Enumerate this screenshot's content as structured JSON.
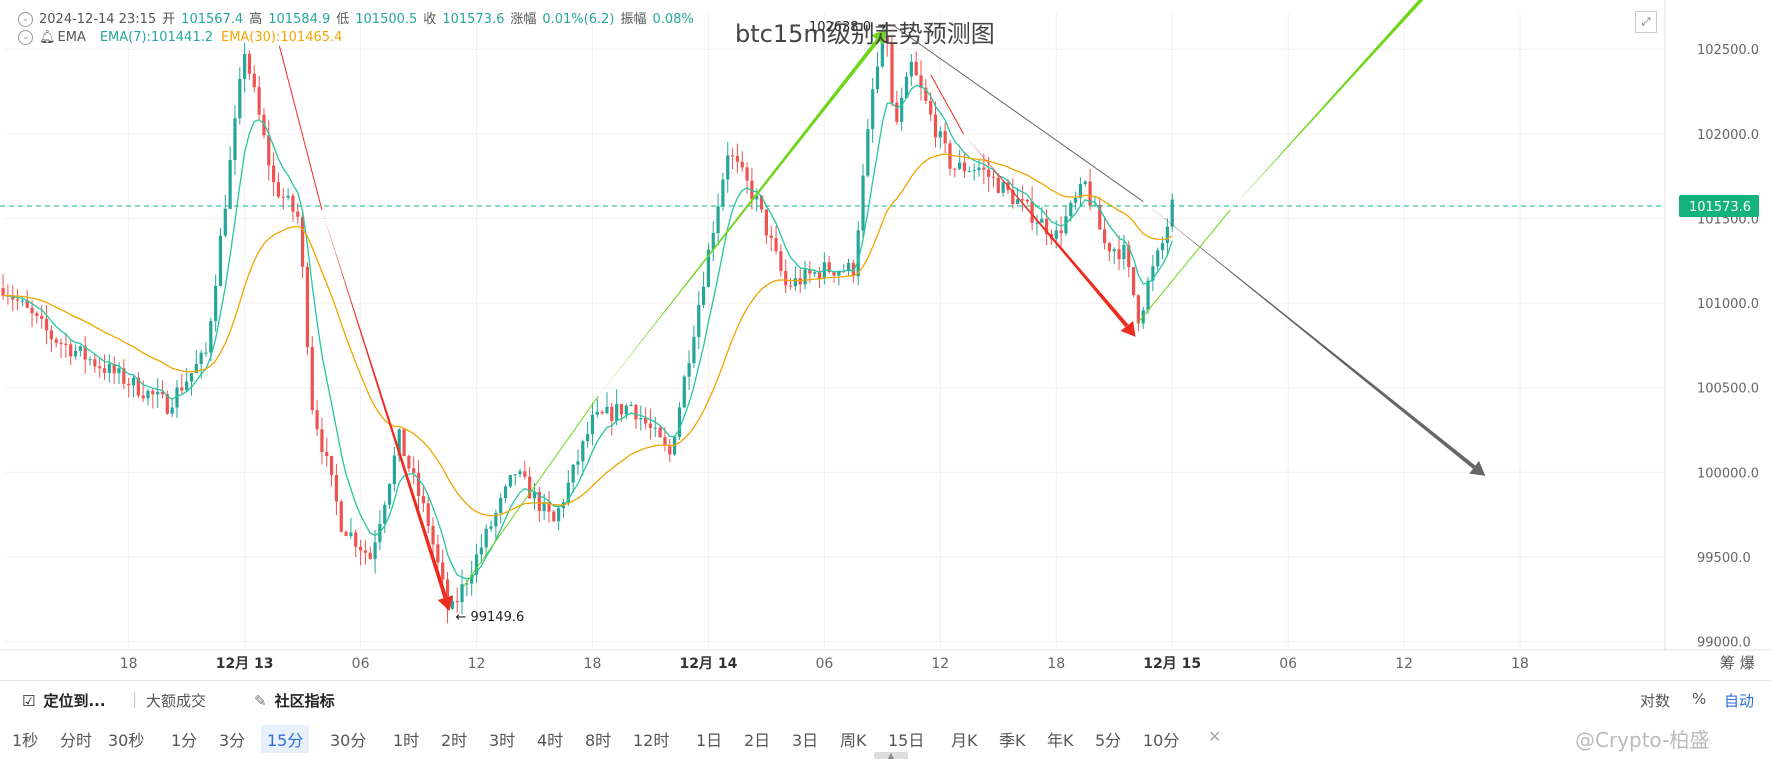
{
  "info": {
    "datetime": "2024-12-14 23:15",
    "open_label": "开",
    "open": "101567.4",
    "high_label": "高",
    "high": "101584.9",
    "low_label": "低",
    "low": "101500.5",
    "close_label": "收",
    "close": "101573.6",
    "change_label": "涨幅",
    "change": "0.01%(6.2)",
    "amplitude_label": "振幅",
    "amplitude": "0.08%",
    "ema_label": "EMA",
    "ema7": "EMA(7):101441.2",
    "ema30": "EMA(30):101465.4"
  },
  "title": "btc15m级别走势预测图",
  "colors": {
    "up": "#26a69a",
    "down": "#ef5350",
    "ema7": "#26c6a0",
    "ema30": "#f0a500",
    "arrow_red": "#ee2b1f",
    "arrow_green": "#6fd61c",
    "arrow_gray": "#666666",
    "price_tag": "#14b37d"
  },
  "price_tag": "101573.6",
  "high_label": "102638.0",
  "low_label": "99149.6",
  "chart_data": {
    "type": "candlestick",
    "title": "btc15m级别走势预测图",
    "ylim": [
      98950,
      102720
    ],
    "y_ticks": [
      "102500.0",
      "102000.0",
      "101500.0",
      "101000.0",
      "100500.0",
      "100000.0",
      "99500.0",
      "99000.0"
    ],
    "y_tick_values": [
      102500,
      102000,
      101500,
      101000,
      100500,
      100000,
      99500,
      99000
    ],
    "x_ticks": [
      "18",
      "12月 13",
      "06",
      "12",
      "18",
      "12月 14",
      "06",
      "12",
      "18",
      "12月 15",
      "06",
      "12",
      "18"
    ],
    "x_tick_hours": [
      -6,
      0,
      6,
      12,
      18,
      24,
      30,
      36,
      42,
      48,
      54,
      60,
      66
    ],
    "x_tick_bold": [
      false,
      true,
      false,
      false,
      false,
      true,
      false,
      false,
      false,
      true,
      false,
      false,
      false
    ],
    "x_range_hours": [
      -12.4,
      73.5
    ],
    "right_axis_extra": "筹 爆",
    "current_price": 101573.6,
    "path_hours": [
      -12.5,
      -10,
      -7,
      -4,
      -2,
      0,
      1.5,
      2.8,
      3.5,
      5,
      6.5,
      8,
      9.5,
      10.6,
      12,
      14,
      16,
      18,
      20,
      22,
      23,
      25,
      26.5,
      28,
      30,
      31.5,
      32.5,
      33.2,
      33.6,
      34.5,
      35.5,
      36.6,
      38,
      40,
      42,
      43.5,
      44.5,
      45.5,
      46.3,
      46.7,
      47.5,
      48
    ],
    "path_prices": [
      101100,
      100800,
      100600,
      100400,
      100700,
      102500,
      101700,
      101500,
      100400,
      99700,
      99500,
      100200,
      99700,
      99150,
      99500,
      100000,
      99700,
      100300,
      100400,
      100100,
      100700,
      101900,
      101600,
      101100,
      101200,
      101200,
      102250,
      102638,
      102000,
      102400,
      102100,
      101800,
      101800,
      101600,
      101400,
      101700,
      101350,
      101300,
      100900,
      101100,
      101350,
      101573
    ]
  },
  "arrows": [
    {
      "color": "gray",
      "from": [
        33.6,
        102638
      ],
      "to": [
        64.2,
        99980
      ],
      "style": "thin-then-thick",
      "thick_from": [
        46.5,
        101600
      ]
    },
    {
      "color": "red",
      "from": [
        1.8,
        102520
      ],
      "to": [
        10.6,
        99180
      ],
      "style": "thin-then-thick",
      "thick_from": [
        4.0,
        101550
      ]
    },
    {
      "color": "red",
      "from": [
        35.5,
        102350
      ],
      "to": [
        46.1,
        100800
      ],
      "style": "thin-then-thick",
      "thick_from": [
        37.2,
        102000
      ]
    },
    {
      "color": "green",
      "from": [
        11.3,
        99320
      ],
      "to": [
        33.2,
        102620
      ],
      "style": "thin-then-thick",
      "thick_from": [
        18.3,
        100450
      ]
    },
    {
      "color": "green",
      "from": [
        46.2,
        100880
      ],
      "to": [
        62.2,
        102960
      ],
      "style": "thin-then-thick",
      "thick_from": [
        51.0,
        101550
      ]
    }
  ],
  "bottom": {
    "locate": "定位到...",
    "block_trades": "大额成交",
    "community_indicators": "社区指标",
    "log": "对数",
    "percent": "%",
    "auto": "自动"
  },
  "timeframes": [
    "1秒",
    "分时",
    "30秒",
    "1分",
    "3分",
    "15分",
    "30分",
    "1时",
    "2时",
    "3时",
    "4时",
    "8时",
    "12时",
    "1日",
    "2日",
    "3日",
    "周K",
    "15日",
    "月K",
    "季K",
    "年K",
    "5分",
    "10分"
  ],
  "active_timeframe": "15分",
  "close_glyph": "✕",
  "watermark": "@Crypto-柏盛"
}
